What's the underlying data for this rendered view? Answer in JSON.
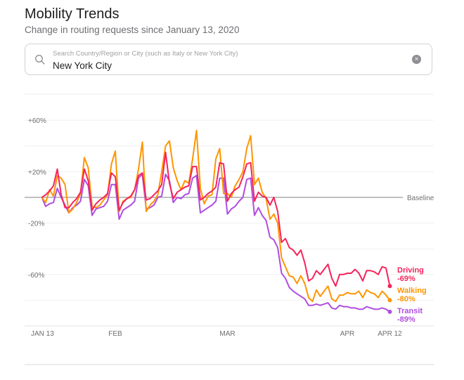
{
  "header": {
    "title": "Mobility Trends",
    "subtitle": "Change in routing requests since January 13, 2020"
  },
  "search": {
    "placeholder": "Search Country/Region or City (such as Italy or New York City)",
    "value": "New York City",
    "icon": "search-icon",
    "clear_icon": "clear-circle-x-icon"
  },
  "chart_data": {
    "type": "line",
    "x_start": "2020-01-13",
    "x_end": "2020-04-12",
    "x_step": "1 day",
    "x_tick_labels": [
      "JAN 13",
      "FEB",
      "MAR",
      "APR",
      "APR 12"
    ],
    "x_tick_dates": [
      "2020-01-13",
      "2020-02-01",
      "2020-03-01",
      "2020-04-01",
      "2020-04-12"
    ],
    "y_tick_labels": [
      "+60%",
      "+20%",
      "-20%",
      "-60%"
    ],
    "y_tick_values": [
      60,
      20,
      -20,
      -60
    ],
    "ylim": [
      -100,
      70
    ],
    "grid_step": 20,
    "grid": true,
    "baseline_label": "Baseline",
    "baseline_value": 0,
    "series": [
      {
        "name": "Driving",
        "end_label": "-69%",
        "color": "#f5245b",
        "values": [
          0,
          2,
          5,
          9,
          22,
          2,
          -8,
          -8,
          -4,
          -1,
          4,
          22,
          13,
          -10,
          -5,
          -2,
          0,
          3,
          19,
          16,
          -10,
          -4,
          -1,
          1,
          6,
          17,
          19,
          -2,
          -1,
          2,
          5,
          10,
          35,
          11,
          -1,
          4,
          6,
          8,
          9,
          24,
          24,
          -2,
          0,
          3,
          5,
          8,
          27,
          26,
          -3,
          3,
          6,
          8,
          16,
          26,
          27,
          -3,
          4,
          1,
          0,
          -6,
          0,
          -11,
          -35,
          -32,
          -39,
          -41,
          -45,
          -41,
          -51,
          -65,
          -63,
          -57,
          -60,
          -56,
          -52,
          -63,
          -69,
          -60,
          -60,
          -59,
          -59,
          -56,
          -59,
          -65,
          -57,
          -57,
          -58,
          -60,
          -54,
          -55,
          -69
        ]
      },
      {
        "name": "Walking",
        "end_label": "-80%",
        "color": "#ff9500",
        "values": [
          0,
          -4,
          6,
          1,
          17,
          15,
          10,
          -12,
          -9,
          -4,
          3,
          31,
          23,
          -7,
          -8,
          -6,
          -2,
          2,
          26,
          36,
          -11,
          -3,
          -1,
          0,
          6,
          22,
          43,
          -11,
          -6,
          -3,
          2,
          20,
          40,
          44,
          23,
          13,
          6,
          13,
          11,
          30,
          52,
          7,
          -5,
          1,
          2,
          30,
          38,
          3,
          3,
          0,
          9,
          14,
          20,
          38,
          48,
          10,
          15,
          4,
          -1,
          -17,
          -13,
          -20,
          -47,
          -54,
          -61,
          -62,
          -67,
          -61,
          -67,
          -78,
          -81,
          -72,
          -77,
          -73,
          -69,
          -79,
          -81,
          -76,
          -76,
          -74,
          -75,
          -75,
          -73,
          -78,
          -72,
          -74,
          -75,
          -78,
          -73,
          -76,
          -80
        ]
      },
      {
        "name": "Transit",
        "end_label": "-89%",
        "color": "#b04de0",
        "values": [
          0,
          -7,
          -5,
          -4,
          7,
          0,
          -6,
          -12,
          -8,
          -6,
          -3,
          14,
          9,
          -14,
          -9,
          -8,
          -7,
          -3,
          10,
          10,
          -17,
          -10,
          -8,
          -6,
          -3,
          15,
          18,
          -9,
          -8,
          -6,
          0,
          1,
          18,
          13,
          -4,
          0,
          -1,
          2,
          3,
          15,
          17,
          -12,
          -10,
          -8,
          -6,
          -3,
          15,
          15,
          -13,
          -9,
          -7,
          -3,
          0,
          14,
          15,
          -14,
          -8,
          -14,
          -18,
          -31,
          -33,
          -39,
          -59,
          -63,
          -70,
          -73,
          -75,
          -77,
          -79,
          -84,
          -84,
          -83,
          -84,
          -83,
          -82,
          -86,
          -87,
          -84,
          -85,
          -85,
          -86,
          -86,
          -87,
          -87,
          -85,
          -86,
          -87,
          -87,
          -86,
          -87,
          -89
        ]
      }
    ]
  }
}
